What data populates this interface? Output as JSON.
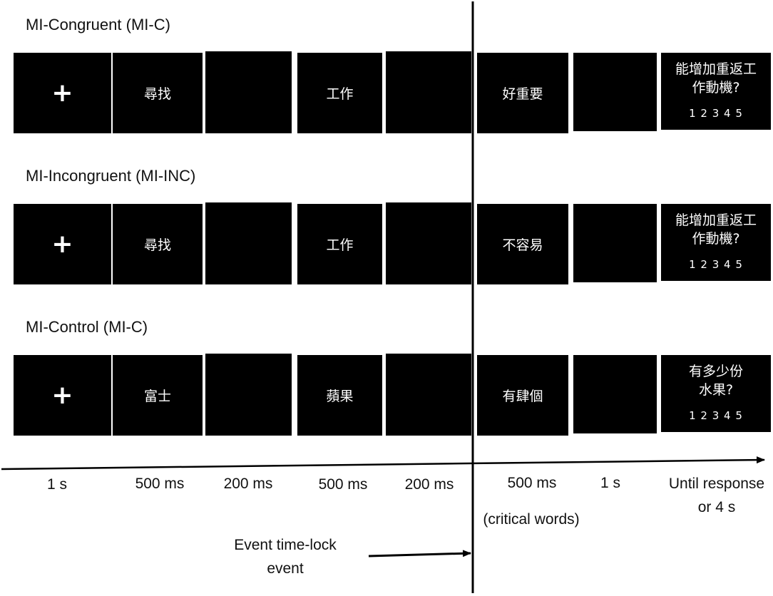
{
  "rows": [
    {
      "title": "MI-Congruent (MI-C)",
      "stimuli": [
        "+",
        "尋找",
        "",
        "工作",
        "",
        "好重要",
        ""
      ],
      "question_lines": [
        "能增加重返工",
        "作動機?"
      ],
      "scale": "1 2 3 4 5"
    },
    {
      "title": "MI-Incongruent (MI-INC)",
      "stimuli": [
        "+",
        "尋找",
        "",
        "工作",
        "",
        "不容易",
        ""
      ],
      "question_lines": [
        "能增加重返工",
        "作動機?"
      ],
      "scale": "1 2 3 4 5"
    },
    {
      "title": "MI-Control (MI-C)",
      "stimuli": [
        "+",
        "富士",
        "",
        "蘋果",
        "",
        "有肆個",
        ""
      ],
      "question_lines": [
        "有多少份",
        "水果?"
      ],
      "scale": "1 2 3 4 5"
    }
  ],
  "timeline": {
    "durations": [
      "1 s",
      "500 ms",
      "200 ms",
      "500 ms",
      "200 ms",
      "500 ms",
      "1 s"
    ],
    "final_line1": "Until response",
    "final_line2": "or 4 s",
    "critical_note": "(critical words)",
    "event_line1": "Event time-lock",
    "event_line2": "event"
  }
}
